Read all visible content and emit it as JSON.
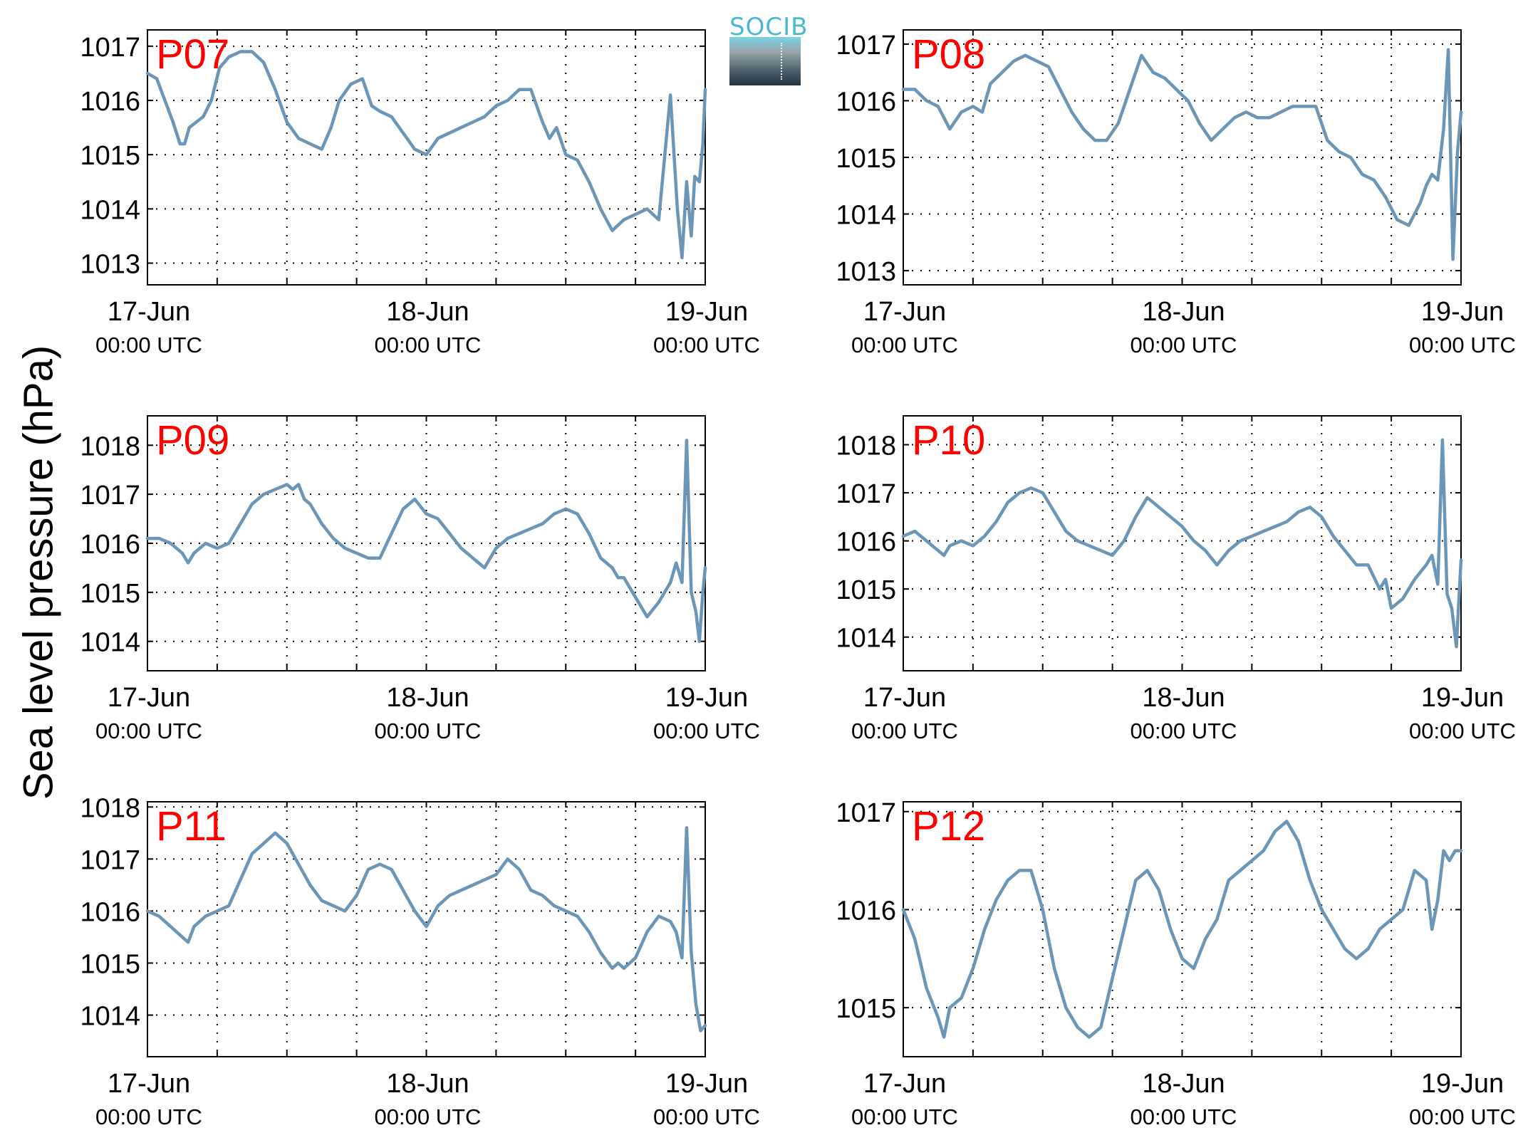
{
  "figure": {
    "ylabel": "Sea level pressure (hPa)",
    "logo_text": "SOCIB"
  },
  "colors": {
    "series": "#6b96b8",
    "panel_label": "#ff0000",
    "grid": "#000000"
  },
  "chart_data": [
    {
      "type": "line",
      "panel_label": "P07",
      "xticks": [
        {
          "major": "17-Jun",
          "minor": "00:00 UTC"
        },
        {
          "major": "18-Jun",
          "minor": "00:00 UTC"
        },
        {
          "major": "19-Jun",
          "minor": "00:00 UTC"
        }
      ],
      "xlim": [
        0,
        48
      ],
      "ylim": [
        1012.6,
        1017.3
      ],
      "yticks": [
        1013,
        1014,
        1015,
        1016,
        1017
      ],
      "grid": true,
      "x": [
        0,
        0.8,
        1.5,
        2.2,
        2.8,
        3.2,
        3.6,
        4.2,
        4.8,
        5.5,
        6.2,
        7,
        8,
        9,
        10,
        11,
        12,
        13,
        14,
        15,
        15.8,
        16.5,
        17.5,
        18.5,
        19.3,
        20,
        21,
        22,
        23,
        24,
        25,
        26,
        27,
        28,
        29,
        30,
        31,
        32,
        33,
        34,
        34.6,
        35.2,
        36,
        37,
        38,
        39,
        40,
        41,
        42,
        43,
        44,
        45,
        45.6,
        46,
        46.4,
        46.8,
        47.1,
        47.5,
        47.8,
        48
      ],
      "values": [
        1016.5,
        1016.4,
        1016.0,
        1015.6,
        1015.2,
        1015.2,
        1015.5,
        1015.6,
        1015.7,
        1016.0,
        1016.6,
        1016.8,
        1016.9,
        1016.9,
        1016.7,
        1016.2,
        1015.6,
        1015.3,
        1015.2,
        1015.1,
        1015.5,
        1016.0,
        1016.3,
        1016.4,
        1015.9,
        1015.8,
        1015.7,
        1015.4,
        1015.1,
        1015.0,
        1015.3,
        1015.4,
        1015.5,
        1015.6,
        1015.7,
        1015.9,
        1016.0,
        1016.2,
        1016.2,
        1015.6,
        1015.3,
        1015.5,
        1015.0,
        1014.9,
        1014.5,
        1014.0,
        1013.6,
        1013.8,
        1013.9,
        1014.0,
        1013.8,
        1016.1,
        1014.0,
        1013.1,
        1014.5,
        1013.5,
        1014.6,
        1014.5,
        1015.2,
        1016.2
      ]
    },
    {
      "type": "line",
      "panel_label": "P08",
      "xticks": [
        {
          "major": "17-Jun",
          "minor": "00:00 UTC"
        },
        {
          "major": "18-Jun",
          "minor": "00:00 UTC"
        },
        {
          "major": "19-Jun",
          "minor": "00:00 UTC"
        }
      ],
      "xlim": [
        0,
        48
      ],
      "ylim": [
        1012.75,
        1017.25
      ],
      "yticks": [
        1013,
        1014,
        1015,
        1016,
        1017
      ],
      "grid": true,
      "x": [
        0,
        1,
        2,
        3,
        3.5,
        4,
        5,
        6,
        6.8,
        7.5,
        8.5,
        9.5,
        10.5,
        11.5,
        12.5,
        13.5,
        14.5,
        15.5,
        16.5,
        17.5,
        18.5,
        19.5,
        20.5,
        21.5,
        22.5,
        23.5,
        24.5,
        25.5,
        26.5,
        27.5,
        28.5,
        29.5,
        30.5,
        31.5,
        32.5,
        33.5,
        34.5,
        35.5,
        36.5,
        37.5,
        38.5,
        39.5,
        40.5,
        41.5,
        42.5,
        43.5,
        44.5,
        45,
        45.5,
        46,
        46.5,
        46.9,
        47.3,
        47.7,
        48
      ],
      "values": [
        1016.2,
        1016.2,
        1016.0,
        1015.9,
        1015.7,
        1015.5,
        1015.8,
        1015.9,
        1015.8,
        1016.3,
        1016.5,
        1016.7,
        1016.8,
        1016.7,
        1016.6,
        1016.2,
        1015.8,
        1015.5,
        1015.3,
        1015.3,
        1015.6,
        1016.2,
        1016.8,
        1016.5,
        1016.4,
        1016.2,
        1016.0,
        1015.6,
        1015.3,
        1015.5,
        1015.7,
        1015.8,
        1015.7,
        1015.7,
        1015.8,
        1015.9,
        1015.9,
        1015.9,
        1015.3,
        1015.1,
        1015.0,
        1014.7,
        1014.6,
        1014.3,
        1013.9,
        1013.8,
        1014.2,
        1014.5,
        1014.7,
        1014.6,
        1015.5,
        1016.9,
        1013.2,
        1015.1,
        1015.8
      ]
    },
    {
      "type": "line",
      "panel_label": "P09",
      "xticks": [
        {
          "major": "17-Jun",
          "minor": "00:00 UTC"
        },
        {
          "major": "18-Jun",
          "minor": "00:00 UTC"
        },
        {
          "major": "19-Jun",
          "minor": "00:00 UTC"
        }
      ],
      "xlim": [
        0,
        48
      ],
      "ylim": [
        1013.4,
        1018.6
      ],
      "yticks": [
        1014,
        1015,
        1016,
        1017,
        1018
      ],
      "grid": true,
      "x": [
        0,
        1,
        2,
        3,
        3.5,
        4,
        5,
        6,
        7,
        8,
        9,
        10,
        11,
        12,
        12.5,
        13,
        13.5,
        14,
        15,
        16,
        17,
        18,
        19,
        20,
        21,
        22,
        23,
        24,
        25,
        26,
        27,
        28,
        29,
        30,
        31,
        32,
        33,
        34,
        35,
        36,
        37,
        38,
        39,
        40,
        40.5,
        41,
        42,
        43,
        44,
        45,
        45.5,
        46,
        46.4,
        46.8,
        47.2,
        47.5,
        47.8,
        48
      ],
      "values": [
        1016.1,
        1016.1,
        1016.0,
        1015.8,
        1015.6,
        1015.8,
        1016.0,
        1015.9,
        1016.0,
        1016.4,
        1016.8,
        1017.0,
        1017.1,
        1017.2,
        1017.1,
        1017.2,
        1016.9,
        1016.8,
        1016.4,
        1016.1,
        1015.9,
        1015.8,
        1015.7,
        1015.7,
        1016.2,
        1016.7,
        1016.9,
        1016.6,
        1016.5,
        1016.2,
        1015.9,
        1015.7,
        1015.5,
        1015.9,
        1016.1,
        1016.2,
        1016.3,
        1016.4,
        1016.6,
        1016.7,
        1016.6,
        1016.2,
        1015.7,
        1015.5,
        1015.3,
        1015.3,
        1014.9,
        1014.5,
        1014.8,
        1015.2,
        1015.6,
        1015.2,
        1018.1,
        1015.0,
        1014.6,
        1014.0,
        1015.0,
        1015.5
      ]
    },
    {
      "type": "line",
      "panel_label": "P10",
      "xticks": [
        {
          "major": "17-Jun",
          "minor": "00:00 UTC"
        },
        {
          "major": "18-Jun",
          "minor": "00:00 UTC"
        },
        {
          "major": "19-Jun",
          "minor": "00:00 UTC"
        }
      ],
      "xlim": [
        0,
        48
      ],
      "ylim": [
        1013.3,
        1018.6
      ],
      "yticks": [
        1014,
        1015,
        1016,
        1017,
        1018
      ],
      "grid": true,
      "x": [
        0,
        1,
        2,
        3,
        3.5,
        4,
        5,
        6,
        7,
        8,
        9,
        10,
        11,
        12,
        13,
        14,
        15,
        16,
        17,
        18,
        19,
        20,
        21,
        22,
        23,
        24,
        25,
        26,
        27,
        28,
        29,
        30,
        31,
        32,
        33,
        34,
        35,
        36,
        37,
        38,
        39,
        40,
        41,
        41.5,
        42,
        43,
        44,
        45,
        45.5,
        46,
        46.4,
        46.8,
        47.2,
        47.6,
        48
      ],
      "values": [
        1016.1,
        1016.2,
        1016.0,
        1015.8,
        1015.7,
        1015.9,
        1016.0,
        1015.9,
        1016.1,
        1016.4,
        1016.8,
        1017.0,
        1017.1,
        1017.0,
        1016.6,
        1016.2,
        1016.0,
        1015.9,
        1015.8,
        1015.7,
        1016.0,
        1016.5,
        1016.9,
        1016.7,
        1016.5,
        1016.3,
        1016.0,
        1015.8,
        1015.5,
        1015.8,
        1016.0,
        1016.1,
        1016.2,
        1016.3,
        1016.4,
        1016.6,
        1016.7,
        1016.5,
        1016.1,
        1015.8,
        1015.5,
        1015.5,
        1015.0,
        1015.2,
        1014.6,
        1014.8,
        1015.2,
        1015.5,
        1015.7,
        1015.1,
        1018.1,
        1014.9,
        1014.6,
        1013.8,
        1015.6
      ]
    },
    {
      "type": "line",
      "panel_label": "P11",
      "xticks": [
        {
          "major": "17-Jun",
          "minor": "00:00 UTC"
        },
        {
          "major": "18-Jun",
          "minor": "00:00 UTC"
        },
        {
          "major": "19-Jun",
          "minor": "00:00 UTC"
        }
      ],
      "xlim": [
        0,
        48
      ],
      "ylim": [
        1013.2,
        1018.1
      ],
      "yticks": [
        1014,
        1015,
        1016,
        1017,
        1018
      ],
      "grid": true,
      "x": [
        0,
        1,
        2,
        3,
        3.5,
        4,
        5,
        6,
        7,
        8,
        9,
        10,
        11,
        12,
        13,
        14,
        15,
        16,
        17,
        18,
        19,
        20,
        21,
        22,
        23,
        24,
        25,
        26,
        27,
        28,
        29,
        30,
        31,
        32,
        33,
        34,
        35,
        36,
        37,
        38,
        39,
        40,
        40.5,
        41,
        42,
        43,
        44,
        45,
        45.5,
        46,
        46.4,
        46.8,
        47.2,
        47.6,
        48
      ],
      "values": [
        1016.0,
        1015.9,
        1015.7,
        1015.5,
        1015.4,
        1015.7,
        1015.9,
        1016.0,
        1016.1,
        1016.6,
        1017.1,
        1017.3,
        1017.5,
        1017.3,
        1016.9,
        1016.5,
        1016.2,
        1016.1,
        1016.0,
        1016.3,
        1016.8,
        1016.9,
        1016.8,
        1016.4,
        1016.0,
        1015.7,
        1016.1,
        1016.3,
        1016.4,
        1016.5,
        1016.6,
        1016.7,
        1017.0,
        1016.8,
        1016.4,
        1016.3,
        1016.1,
        1016.0,
        1015.9,
        1015.6,
        1015.2,
        1014.9,
        1015.0,
        1014.9,
        1015.1,
        1015.6,
        1015.9,
        1015.8,
        1015.6,
        1015.1,
        1017.6,
        1015.2,
        1014.2,
        1013.7,
        1013.8
      ]
    },
    {
      "type": "line",
      "panel_label": "P12",
      "xticks": [
        {
          "major": "17-Jun",
          "minor": "00:00 UTC"
        },
        {
          "major": "18-Jun",
          "minor": "00:00 UTC"
        },
        {
          "major": "19-Jun",
          "minor": "00:00 UTC"
        }
      ],
      "xlim": [
        0,
        48
      ],
      "ylim": [
        1014.5,
        1017.1
      ],
      "yticks": [
        1015,
        1016,
        1017
      ],
      "grid": true,
      "x": [
        0,
        1,
        2,
        3,
        3.5,
        4,
        5,
        6,
        7,
        8,
        9,
        10,
        11,
        12,
        13,
        14,
        15,
        16,
        17,
        18,
        19,
        20,
        21,
        22,
        23,
        24,
        25,
        26,
        27,
        28,
        29,
        30,
        31,
        32,
        33,
        34,
        35,
        36,
        37,
        38,
        39,
        40,
        41,
        42,
        43,
        44,
        45,
        45.5,
        46,
        46.5,
        47,
        47.5,
        48
      ],
      "values": [
        1016.0,
        1015.7,
        1015.2,
        1014.9,
        1014.7,
        1015.0,
        1015.1,
        1015.4,
        1015.8,
        1016.1,
        1016.3,
        1016.4,
        1016.4,
        1016.0,
        1015.4,
        1015.0,
        1014.8,
        1014.7,
        1014.8,
        1015.3,
        1015.8,
        1016.3,
        1016.4,
        1016.2,
        1015.8,
        1015.5,
        1015.4,
        1015.7,
        1015.9,
        1016.3,
        1016.4,
        1016.5,
        1016.6,
        1016.8,
        1016.9,
        1016.7,
        1016.3,
        1016.0,
        1015.8,
        1015.6,
        1015.5,
        1015.6,
        1015.8,
        1015.9,
        1016.0,
        1016.4,
        1016.3,
        1015.8,
        1016.1,
        1016.6,
        1016.5,
        1016.6,
        1016.6
      ]
    }
  ]
}
